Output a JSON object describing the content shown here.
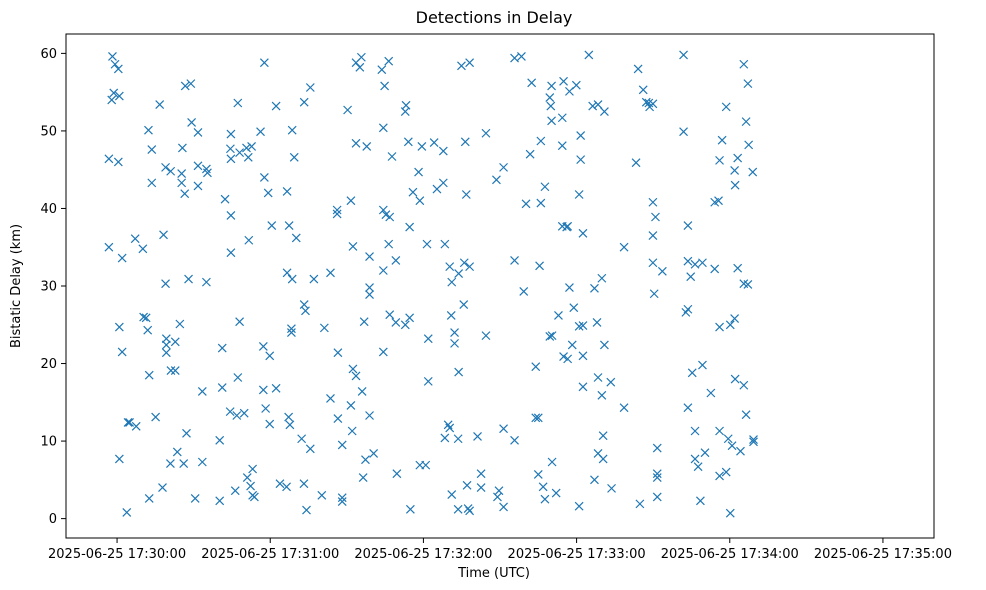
{
  "chart_data": {
    "type": "scatter",
    "title": "Detections in Delay",
    "xlabel": "Time (UTC)",
    "ylabel": "Bistatic Delay (km)",
    "marker": "x",
    "color": "#1f77b4",
    "grid": false,
    "x_unit": "seconds since 2025-06-25 17:30:00",
    "xlim": [
      -20,
      320
    ],
    "ylim": [
      -2.5,
      62.5
    ],
    "xticks": [
      {
        "value": 0,
        "label": "2025-06-25 17:30:00"
      },
      {
        "value": 60,
        "label": "2025-06-25 17:31:00"
      },
      {
        "value": 120,
        "label": "2025-06-25 17:32:00"
      },
      {
        "value": 180,
        "label": "2025-06-25 17:33:00"
      },
      {
        "value": 240,
        "label": "2025-06-25 17:34:00"
      },
      {
        "value": 300,
        "label": "2025-06-25 17:35:00"
      }
    ],
    "yticks": [
      {
        "value": 0,
        "label": "0"
      },
      {
        "value": 10,
        "label": "10"
      },
      {
        "value": 20,
        "label": "20"
      },
      {
        "value": 30,
        "label": "30"
      },
      {
        "value": 40,
        "label": "40"
      },
      {
        "value": 50,
        "label": "50"
      },
      {
        "value": 60,
        "label": "60"
      }
    ],
    "points": [
      [
        -3.2,
        46.4
      ],
      [
        -3.2,
        35.0
      ],
      [
        -2.1,
        54.0
      ],
      [
        -1.8,
        59.6
      ],
      [
        -1.3,
        54.9
      ],
      [
        -0.8,
        58.6
      ],
      [
        0.5,
        58.0
      ],
      [
        0.5,
        46.0
      ],
      [
        0.9,
        54.5
      ],
      [
        0.9,
        7.7
      ],
      [
        0.9,
        24.7
      ],
      [
        2.0,
        33.6
      ],
      [
        2.0,
        21.5
      ],
      [
        3.8,
        0.8
      ],
      [
        4.3,
        12.4
      ],
      [
        4.9,
        12.4
      ],
      [
        7.1,
        36.1
      ],
      [
        7.5,
        11.9
      ],
      [
        10.1,
        34.8
      ],
      [
        10.4,
        26.0
      ],
      [
        11.4,
        25.9
      ],
      [
        12.0,
        24.3
      ],
      [
        12.3,
        50.1
      ],
      [
        12.6,
        18.5
      ],
      [
        12.6,
        2.6
      ],
      [
        13.6,
        47.6
      ],
      [
        13.6,
        43.3
      ],
      [
        15.1,
        13.1
      ],
      [
        16.7,
        53.4
      ],
      [
        17.8,
        4.0
      ],
      [
        18.2,
        36.6
      ],
      [
        19.0,
        45.3
      ],
      [
        19.0,
        30.3
      ],
      [
        19.3,
        23.2
      ],
      [
        19.3,
        22.4
      ],
      [
        19.3,
        21.4
      ],
      [
        20.9,
        7.1
      ],
      [
        21.0,
        44.8
      ],
      [
        21.1,
        19.1
      ],
      [
        22.8,
        22.8
      ],
      [
        22.8,
        19.1
      ],
      [
        23.6,
        8.6
      ],
      [
        24.6,
        25.1
      ],
      [
        25.3,
        44.5
      ],
      [
        25.3,
        43.3
      ],
      [
        25.6,
        47.8
      ],
      [
        26.1,
        7.1
      ],
      [
        26.5,
        41.9
      ],
      [
        26.7,
        55.8
      ],
      [
        27.2,
        11.0
      ],
      [
        28.0,
        30.9
      ],
      [
        28.9,
        56.1
      ],
      [
        29.2,
        51.1
      ],
      [
        30.6,
        2.6
      ],
      [
        31.7,
        49.8
      ],
      [
        31.7,
        45.5
      ],
      [
        31.7,
        42.9
      ],
      [
        33.4,
        16.4
      ],
      [
        33.4,
        7.3
      ],
      [
        35.0,
        45.1
      ],
      [
        35.0,
        30.5
      ],
      [
        35.4,
        44.6
      ],
      [
        40.2,
        10.1
      ],
      [
        40.2,
        2.3
      ],
      [
        41.2,
        22.0
      ],
      [
        41.2,
        16.9
      ],
      [
        42.3,
        41.2
      ],
      [
        44.3,
        13.8
      ],
      [
        44.4,
        47.7
      ],
      [
        44.6,
        46.4
      ],
      [
        44.6,
        39.1
      ],
      [
        44.6,
        34.3
      ],
      [
        44.6,
        49.6
      ],
      [
        46.3,
        3.6
      ],
      [
        46.9,
        13.3
      ],
      [
        47.3,
        53.6
      ],
      [
        47.3,
        18.2
      ],
      [
        48.0,
        47.2
      ],
      [
        48.0,
        25.4
      ],
      [
        49.8,
        13.6
      ],
      [
        50.7,
        47.8
      ],
      [
        51.0,
        5.3
      ],
      [
        51.4,
        46.6
      ],
      [
        51.6,
        35.9
      ],
      [
        52.3,
        4.2
      ],
      [
        52.7,
        48.0
      ],
      [
        53.1,
        6.4
      ],
      [
        53.1,
        3.0
      ],
      [
        53.8,
        2.8
      ],
      [
        56.2,
        49.9
      ],
      [
        57.3,
        16.6
      ],
      [
        57.3,
        22.2
      ],
      [
        57.7,
        58.8
      ],
      [
        57.7,
        44.0
      ],
      [
        58.2,
        14.2
      ],
      [
        59.2,
        42.0
      ],
      [
        59.8,
        21.0
      ],
      [
        59.8,
        12.2
      ],
      [
        60.6,
        37.8
      ],
      [
        62.3,
        16.8
      ],
      [
        62.3,
        53.2
      ],
      [
        63.8,
        4.5
      ],
      [
        66.4,
        4.1
      ],
      [
        66.6,
        31.7
      ],
      [
        66.6,
        42.2
      ],
      [
        67.2,
        13.1
      ],
      [
        67.4,
        37.8
      ],
      [
        67.7,
        12.1
      ],
      [
        68.3,
        24.0
      ],
      [
        68.3,
        24.5
      ],
      [
        68.6,
        50.1
      ],
      [
        68.6,
        30.9
      ],
      [
        69.4,
        46.6
      ],
      [
        70.2,
        36.2
      ],
      [
        72.3,
        10.3
      ],
      [
        73.2,
        4.5
      ],
      [
        73.3,
        53.7
      ],
      [
        73.3,
        27.6
      ],
      [
        73.8,
        26.8
      ],
      [
        74.2,
        1.1
      ],
      [
        75.7,
        9.0
      ],
      [
        75.7,
        55.6
      ],
      [
        77.1,
        30.9
      ],
      [
        80.2,
        3.0
      ],
      [
        81.2,
        24.6
      ],
      [
        83.6,
        15.5
      ],
      [
        83.6,
        31.7
      ],
      [
        86.2,
        39.8
      ],
      [
        86.2,
        39.3
      ],
      [
        86.5,
        21.4
      ],
      [
        86.5,
        12.9
      ],
      [
        88.2,
        9.5
      ],
      [
        88.2,
        2.7
      ],
      [
        88.2,
        2.2
      ],
      [
        90.3,
        52.7
      ],
      [
        91.6,
        14.6
      ],
      [
        91.6,
        41.0
      ],
      [
        92.1,
        11.3
      ],
      [
        92.4,
        19.3
      ],
      [
        92.4,
        35.1
      ],
      [
        93.6,
        58.8
      ],
      [
        93.6,
        48.4
      ],
      [
        93.6,
        18.4
      ],
      [
        95.1,
        58.2
      ],
      [
        95.7,
        59.5
      ],
      [
        96.0,
        16.4
      ],
      [
        96.4,
        5.3
      ],
      [
        96.8,
        25.4
      ],
      [
        97.3,
        7.6
      ],
      [
        97.8,
        48.0
      ],
      [
        98.9,
        29.8
      ],
      [
        98.9,
        33.8
      ],
      [
        98.9,
        28.9
      ],
      [
        98.9,
        13.3
      ],
      [
        100.5,
        8.4
      ],
      [
        103.7,
        57.9
      ],
      [
        104.3,
        50.4
      ],
      [
        104.3,
        39.8
      ],
      [
        104.3,
        32.0
      ],
      [
        104.3,
        21.5
      ],
      [
        104.8,
        55.8
      ],
      [
        105.3,
        39.2
      ],
      [
        106.4,
        59.0
      ],
      [
        106.4,
        35.4
      ],
      [
        106.8,
        38.9
      ],
      [
        106.8,
        26.3
      ],
      [
        107.7,
        46.7
      ],
      [
        109.2,
        25.3
      ],
      [
        109.2,
        33.3
      ],
      [
        109.6,
        5.8
      ],
      [
        112.9,
        52.5
      ],
      [
        112.9,
        25.0
      ],
      [
        113.2,
        53.3
      ],
      [
        114.1,
        48.6
      ],
      [
        114.6,
        25.9
      ],
      [
        114.6,
        37.6
      ],
      [
        114.9,
        1.2
      ],
      [
        115.9,
        42.1
      ],
      [
        118.1,
        44.7
      ],
      [
        118.6,
        41.0
      ],
      [
        118.6,
        6.9
      ],
      [
        119.4,
        48.0
      ],
      [
        120.9,
        6.9
      ],
      [
        121.4,
        35.4
      ],
      [
        121.9,
        17.7
      ],
      [
        121.9,
        23.2
      ],
      [
        124.2,
        48.5
      ],
      [
        125.3,
        42.5
      ],
      [
        127.8,
        47.4
      ],
      [
        127.8,
        43.3
      ],
      [
        128.4,
        35.4
      ],
      [
        128.4,
        10.4
      ],
      [
        129.7,
        12.1
      ],
      [
        130.3,
        11.7
      ],
      [
        130.3,
        32.5
      ],
      [
        130.9,
        26.2
      ],
      [
        131.1,
        3.1
      ],
      [
        131.1,
        30.5
      ],
      [
        132.2,
        24.0
      ],
      [
        132.2,
        22.6
      ],
      [
        133.6,
        1.2
      ],
      [
        133.6,
        10.3
      ],
      [
        133.8,
        31.6
      ],
      [
        133.8,
        18.9
      ],
      [
        134.9,
        58.4
      ],
      [
        135.8,
        27.6
      ],
      [
        136.0,
        33.0
      ],
      [
        136.4,
        48.6
      ],
      [
        136.8,
        41.8
      ],
      [
        137.1,
        4.3
      ],
      [
        137.5,
        1.3
      ],
      [
        138.1,
        58.8
      ],
      [
        138.1,
        1.0
      ],
      [
        138.1,
        32.5
      ],
      [
        141.2,
        10.6
      ],
      [
        142.6,
        5.8
      ],
      [
        142.6,
        4.0
      ],
      [
        144.5,
        49.7
      ],
      [
        144.5,
        23.6
      ],
      [
        148.6,
        43.7
      ],
      [
        149.0,
        2.8
      ],
      [
        149.6,
        3.6
      ],
      [
        151.4,
        1.5
      ],
      [
        151.4,
        11.6
      ],
      [
        151.4,
        45.3
      ],
      [
        155.7,
        59.4
      ],
      [
        155.7,
        33.3
      ],
      [
        155.7,
        10.1
      ],
      [
        158.4,
        59.6
      ],
      [
        159.3,
        29.3
      ],
      [
        160.2,
        40.6
      ],
      [
        161.8,
        47.0
      ],
      [
        162.4,
        56.2
      ],
      [
        164.0,
        19.6
      ],
      [
        164.0,
        13.0
      ],
      [
        165.0,
        13.0
      ],
      [
        165.0,
        5.7
      ],
      [
        165.5,
        32.6
      ],
      [
        166.0,
        40.7
      ],
      [
        166.0,
        48.7
      ],
      [
        166.9,
        4.1
      ],
      [
        167.6,
        2.5
      ],
      [
        167.6,
        42.8
      ],
      [
        169.5,
        23.5
      ],
      [
        169.5,
        54.3
      ],
      [
        169.9,
        53.2
      ],
      [
        170.2,
        55.8
      ],
      [
        170.2,
        51.3
      ],
      [
        170.4,
        23.6
      ],
      [
        170.4,
        7.3
      ],
      [
        172.0,
        3.3
      ],
      [
        172.9,
        26.2
      ],
      [
        174.4,
        37.7
      ],
      [
        174.4,
        51.7
      ],
      [
        174.4,
        48.1
      ],
      [
        174.9,
        56.4
      ],
      [
        174.9,
        20.9
      ],
      [
        176.1,
        37.6
      ],
      [
        176.5,
        20.6
      ],
      [
        176.5,
        37.7
      ],
      [
        177.2,
        55.1
      ],
      [
        177.2,
        29.8
      ],
      [
        178.3,
        22.4
      ],
      [
        178.9,
        27.2
      ],
      [
        179.9,
        55.9
      ],
      [
        181.0,
        1.6
      ],
      [
        181.0,
        41.8
      ],
      [
        181.0,
        24.8
      ],
      [
        181.6,
        49.4
      ],
      [
        181.6,
        46.3
      ],
      [
        182.5,
        21.0
      ],
      [
        182.5,
        36.8
      ],
      [
        182.5,
        17.0
      ],
      [
        182.5,
        24.9
      ],
      [
        184.8,
        59.8
      ],
      [
        186.3,
        53.2
      ],
      [
        187.0,
        5.0
      ],
      [
        187.0,
        29.7
      ],
      [
        188.0,
        25.3
      ],
      [
        188.4,
        8.4
      ],
      [
        188.4,
        18.2
      ],
      [
        188.4,
        53.4
      ],
      [
        189.9,
        31.0
      ],
      [
        189.9,
        15.9
      ],
      [
        190.4,
        10.7
      ],
      [
        190.4,
        7.7
      ],
      [
        190.9,
        22.4
      ],
      [
        190.9,
        52.5
      ],
      [
        193.4,
        17.6
      ],
      [
        193.7,
        3.9
      ],
      [
        198.6,
        14.3
      ],
      [
        198.6,
        35.0
      ],
      [
        203.3,
        45.9
      ],
      [
        204.1,
        58.0
      ],
      [
        204.8,
        1.9
      ],
      [
        206.1,
        55.3
      ],
      [
        207.3,
        53.7
      ],
      [
        208.3,
        53.6
      ],
      [
        208.6,
        53.1
      ],
      [
        209.9,
        53.5
      ],
      [
        209.9,
        40.8
      ],
      [
        209.9,
        36.5
      ],
      [
        209.9,
        33.0
      ],
      [
        210.4,
        29.0
      ],
      [
        210.9,
        38.9
      ],
      [
        211.6,
        9.1
      ],
      [
        211.6,
        5.8
      ],
      [
        211.6,
        5.3
      ],
      [
        211.6,
        2.8
      ],
      [
        213.6,
        31.9
      ],
      [
        221.9,
        59.8
      ],
      [
        221.9,
        49.9
      ],
      [
        222.8,
        26.6
      ],
      [
        223.6,
        27.0
      ],
      [
        223.6,
        37.8
      ],
      [
        223.6,
        14.3
      ],
      [
        223.6,
        33.2
      ],
      [
        224.7,
        31.2
      ],
      [
        225.3,
        18.8
      ],
      [
        226.4,
        11.3
      ],
      [
        226.4,
        7.7
      ],
      [
        226.4,
        32.8
      ],
      [
        227.6,
        6.7
      ],
      [
        228.5,
        2.3
      ],
      [
        229.3,
        33.0
      ],
      [
        229.3,
        19.8
      ],
      [
        230.3,
        8.5
      ],
      [
        232.6,
        16.2
      ],
      [
        234.1,
        32.2
      ],
      [
        234.1,
        40.8
      ],
      [
        235.6,
        41.0
      ],
      [
        236.0,
        11.3
      ],
      [
        236.0,
        5.5
      ],
      [
        236.0,
        24.7
      ],
      [
        236.0,
        46.2
      ],
      [
        237.0,
        48.8
      ],
      [
        238.6,
        53.1
      ],
      [
        238.6,
        6.0
      ],
      [
        239.4,
        10.3
      ],
      [
        240.2,
        0.7
      ],
      [
        240.2,
        25.0
      ],
      [
        240.9,
        9.4
      ],
      [
        241.9,
        44.9
      ],
      [
        241.9,
        25.8
      ],
      [
        242.1,
        43.0
      ],
      [
        242.1,
        18.0
      ],
      [
        243.1,
        32.3
      ],
      [
        243.1,
        46.5
      ],
      [
        244.2,
        8.7
      ],
      [
        245.5,
        58.6
      ],
      [
        245.5,
        17.2
      ],
      [
        245.5,
        30.3
      ],
      [
        246.4,
        51.2
      ],
      [
        246.4,
        13.4
      ],
      [
        247.1,
        30.2
      ],
      [
        247.1,
        56.1
      ],
      [
        247.4,
        48.2
      ],
      [
        249.0,
        44.7
      ],
      [
        249.3,
        10.2
      ],
      [
        249.3,
        9.9
      ]
    ]
  }
}
